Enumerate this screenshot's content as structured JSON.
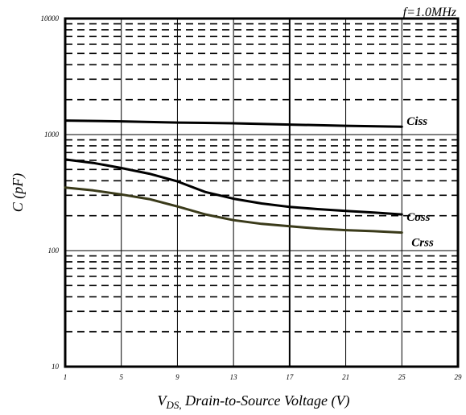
{
  "chart_data": {
    "type": "line",
    "title": "",
    "condition_label": "f=1.0MHz",
    "xlabel": {
      "main": "V",
      "subscript": "DS",
      "separator": ",",
      "rest": " Drain-to-Source Voltage (V)"
    },
    "ylabel": "C (pF)",
    "x_ticks": [
      1,
      5,
      9,
      13,
      17,
      21,
      25,
      29
    ],
    "y_ticks": [
      10,
      100,
      1000,
      10000
    ],
    "xlim": [
      1,
      29
    ],
    "ylim": [
      10,
      10000
    ],
    "y_scale": "log",
    "grid": true,
    "series": [
      {
        "name": "Ciss",
        "color": "#000000",
        "x": [
          1,
          5,
          9,
          13,
          17,
          21,
          25
        ],
        "y": [
          1320,
          1300,
          1270,
          1250,
          1220,
          1190,
          1170
        ]
      },
      {
        "name": "Coss",
        "color": "#000000",
        "x": [
          1,
          3,
          5,
          7,
          9,
          11,
          13,
          15,
          17,
          19,
          21,
          23,
          25
        ],
        "y": [
          610,
          570,
          515,
          460,
          395,
          320,
          280,
          255,
          238,
          228,
          220,
          213,
          205
        ]
      },
      {
        "name": "Crss",
        "color": "#3a3a1a",
        "x": [
          1,
          3,
          5,
          7,
          9,
          11,
          13,
          15,
          17,
          19,
          21,
          23,
          25
        ],
        "y": [
          350,
          330,
          305,
          278,
          240,
          205,
          183,
          170,
          162,
          155,
          150,
          147,
          143
        ]
      }
    ]
  }
}
